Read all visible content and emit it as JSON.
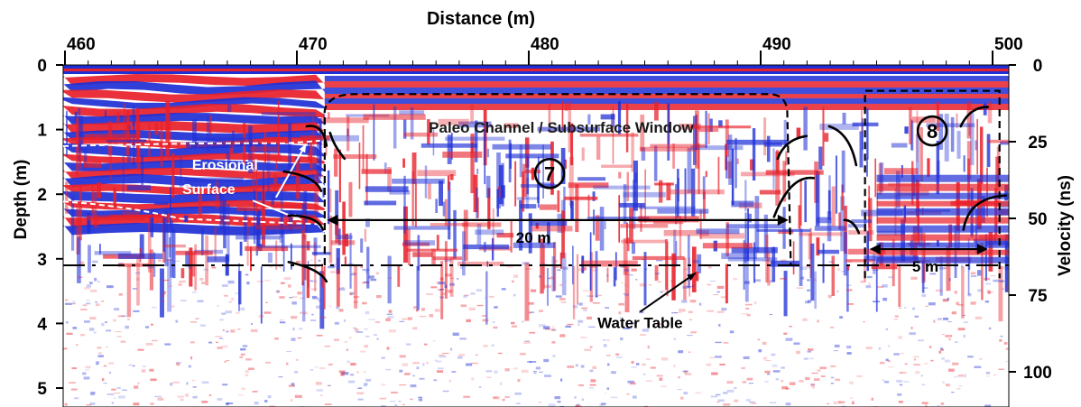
{
  "chart_data": {
    "type": "heatmap",
    "subtype": "ground-penetrating-radar-profile",
    "title": "",
    "xlabel": "Distance (m)",
    "ylabel_left": "Depth (m)",
    "ylabel_right": "Velocity (ns)",
    "x_ticks": [
      "460",
      "470",
      "480",
      "490",
      "500"
    ],
    "x_tick_values": [
      460,
      470,
      480,
      490,
      500
    ],
    "xlim": [
      460,
      501
    ],
    "depth_ticks": [
      "0",
      "1",
      "2",
      "3",
      "4",
      "5"
    ],
    "depth_tick_values": [
      0,
      1,
      2,
      3,
      4,
      5
    ],
    "depth_lim": [
      0,
      5.3
    ],
    "time_ticks": [
      "0",
      "25",
      "50",
      "75",
      "100"
    ],
    "time_tick_values": [
      0,
      25,
      50,
      75,
      100
    ],
    "time_lim": [
      0,
      110
    ],
    "colormap": {
      "positive": "#e8202a",
      "neutral": "#ffffff",
      "negative": "#1f2fd6"
    },
    "grid": false,
    "legend": "none",
    "features": {
      "water_table_depth_m": 3.1,
      "erosional_surface_upper_depth_m": 1.2,
      "erosional_surface_lower_depth_m": 2.45,
      "channel_window_7": {
        "x_start": 471.2,
        "x_end": 491.3,
        "top_depth_m": 0.45,
        "bottom_depth_m": 3.1
      },
      "window_8": {
        "x_start": 494.5,
        "x_end": 500.3,
        "top_depth_m": 0.4,
        "bottom_depth_m": 3.3
      },
      "span_20m": {
        "x_start": 471.3,
        "x_end": 491.2,
        "depth_m": 2.4
      },
      "span_5m": {
        "x_start": 494.7,
        "x_end": 499.8,
        "depth_m": 2.85
      }
    },
    "annotations": {
      "erosional_line1": "Erosional",
      "erosional_line2": "Surface",
      "channel": "Paleo Channel / Subsurface Window",
      "label_7": "7",
      "label_8": "8",
      "span_20": "20 m",
      "span_5": "5 m",
      "water_table": "Water Table"
    }
  }
}
